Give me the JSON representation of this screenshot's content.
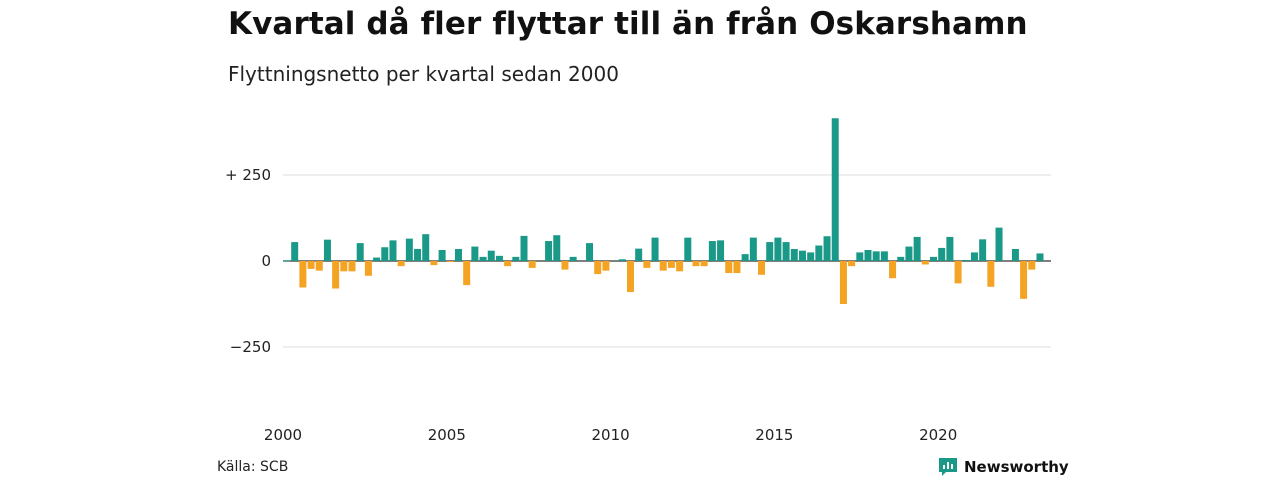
{
  "title": "Kvartal då fler flyttar till än från Oskarshamn",
  "subtitle": "Flyttningsnetto per kvartal sedan 2000",
  "source": "Källa: SCB",
  "brand": {
    "name": "Newsworthy",
    "icon": "newsworthy-logo-icon"
  },
  "colors": {
    "positive": "#1a9988",
    "negative": "#f4a323",
    "grid": "#dcdcdc",
    "zero": "#333333"
  },
  "chart_data": {
    "type": "bar",
    "title": "Kvartal då fler flyttar till än från Oskarshamn",
    "subtitle": "Flyttningsnetto per kvartal sedan 2000",
    "x_start": "2000-Q1",
    "x_ticks": [
      "2000",
      "2005",
      "2010",
      "2015",
      "2020"
    ],
    "y_ticks": [
      {
        "value": 250,
        "label": "+ 250"
      },
      {
        "value": 0,
        "label": "0"
      },
      {
        "value": -250,
        "label": "−250"
      }
    ],
    "ylim": [
      -400,
      420
    ],
    "grid": true,
    "series": [
      {
        "values": [
          2,
          55,
          -77,
          -23,
          -28,
          62,
          -80,
          -30,
          -30,
          52,
          -43,
          10,
          40,
          60,
          -15,
          65,
          35,
          78,
          -12,
          32,
          -3,
          35,
          -70,
          42,
          12,
          30,
          15,
          -15,
          12,
          73,
          -20,
          0,
          58,
          75,
          -25,
          12,
          0,
          52,
          -38,
          -28,
          0,
          5,
          -90,
          36,
          -20,
          68,
          -28,
          -20,
          -30,
          68,
          -15,
          -15,
          58,
          60,
          -35,
          -35,
          20,
          68,
          -40,
          55,
          68,
          55,
          35,
          30,
          25,
          45,
          72,
          415,
          -125,
          -15,
          25,
          32,
          28,
          28,
          -50,
          12,
          42,
          70,
          -10,
          12,
          38,
          70,
          -65,
          3,
          25,
          63,
          -75,
          97,
          0,
          35,
          -110,
          -25,
          22
        ]
      }
    ]
  }
}
